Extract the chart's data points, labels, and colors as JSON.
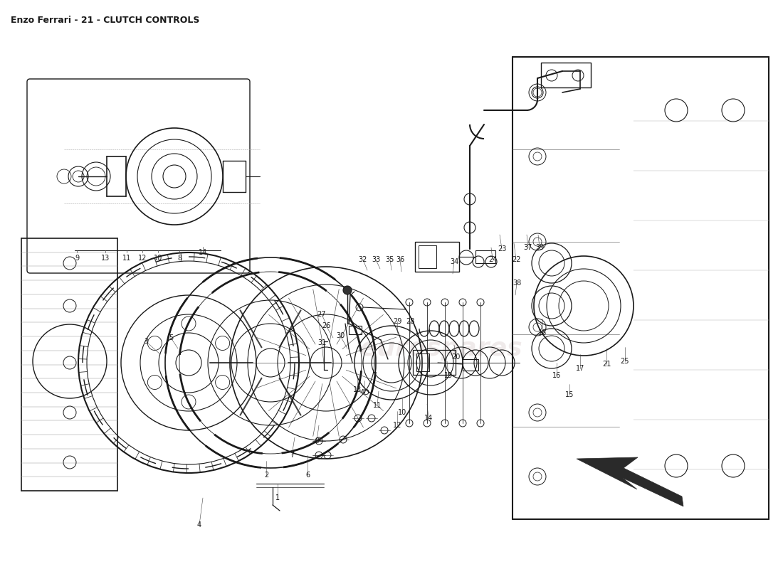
{
  "title": "Enzo Ferrari - 21 - CLUTCH CONTROLS",
  "title_fontsize": 9,
  "background_color": "#ffffff",
  "watermark_text": "eurospares",
  "watermark_color": "#ccbbbb",
  "watermark_alpha": 0.3,
  "fig_width": 11.0,
  "fig_height": 8.0,
  "dpi": 100,
  "line_color": "#1a1a1a",
  "text_color": "#1a1a1a",
  "font_family": "DejaVu Sans"
}
